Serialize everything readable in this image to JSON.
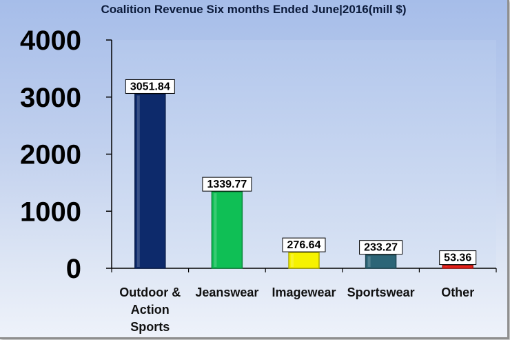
{
  "chart_data": {
    "type": "bar",
    "title": "Coalition Revenue Six months Ended June|2016(mill $)",
    "xlabel": "",
    "ylabel": "",
    "categories": [
      [
        "Outdoor &",
        "Action",
        "Sports"
      ],
      [
        "Jeanswear"
      ],
      [
        "Imagewear"
      ],
      [
        "Sportswear"
      ],
      [
        "Other"
      ]
    ],
    "values": [
      3051.84,
      1339.77,
      276.64,
      233.27,
      53.36
    ],
    "data_labels": [
      "3051.84",
      "1339.77",
      "276.64",
      "233.27",
      "53.36"
    ],
    "colors": [
      "#0d2a6b",
      "#0fbf55",
      "#f6f200",
      "#2c6577",
      "#e8211a"
    ],
    "ylim": [
      0,
      4000
    ],
    "yticks": [
      0,
      1000,
      2000,
      3000,
      4000
    ],
    "grid": false,
    "legend": "none"
  }
}
